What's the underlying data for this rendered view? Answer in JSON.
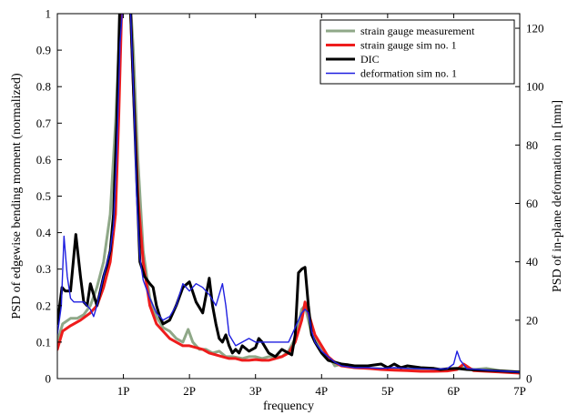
{
  "chart_data": {
    "type": "line",
    "title": "",
    "xlabel": "frequency",
    "ylabel": "PSD of edgewise bending moment (normalized)",
    "y2label": "PSD of in-plane deformation in [mm]",
    "xlim": [
      0,
      7
    ],
    "ylim": [
      0,
      1
    ],
    "y2lim": [
      0,
      125
    ],
    "xticks": [
      1,
      2,
      3,
      4,
      5,
      6,
      7
    ],
    "xtick_labels": [
      "1P",
      "2P",
      "3P",
      "4P",
      "5P",
      "6P",
      "7P"
    ],
    "yticks": [
      0,
      0.1,
      0.2,
      0.3,
      0.4,
      0.5,
      0.6,
      0.7,
      0.8,
      0.9,
      1
    ],
    "ytick_labels": [
      "0",
      "0.1",
      "0.2",
      "0.3",
      "0.4",
      "0.5",
      "0.6",
      "0.7",
      "0.8",
      "0.9",
      "1"
    ],
    "y2ticks": [
      0,
      20,
      40,
      60,
      80,
      100,
      120
    ],
    "y2tick_labels": [
      "0",
      "20",
      "40",
      "60",
      "80",
      "100",
      "120"
    ],
    "grid": false,
    "legend_position": "top-right",
    "series": [
      {
        "name": "strain gauge measurement",
        "color": "#8fa888",
        "width": 3,
        "axis": "left",
        "points": [
          [
            0.0,
            0.1
          ],
          [
            0.08,
            0.15
          ],
          [
            0.2,
            0.165
          ],
          [
            0.3,
            0.165
          ],
          [
            0.4,
            0.175
          ],
          [
            0.5,
            0.2
          ],
          [
            0.6,
            0.25
          ],
          [
            0.7,
            0.32
          ],
          [
            0.8,
            0.45
          ],
          [
            0.88,
            0.7
          ],
          [
            0.95,
            0.98
          ],
          [
            1.0,
            1.05
          ],
          [
            1.1,
            1.05
          ],
          [
            1.15,
            0.9
          ],
          [
            1.22,
            0.6
          ],
          [
            1.3,
            0.35
          ],
          [
            1.4,
            0.22
          ],
          [
            1.5,
            0.17
          ],
          [
            1.6,
            0.14
          ],
          [
            1.7,
            0.13
          ],
          [
            1.8,
            0.11
          ],
          [
            1.9,
            0.1
          ],
          [
            1.98,
            0.135
          ],
          [
            2.05,
            0.1
          ],
          [
            2.15,
            0.08
          ],
          [
            2.25,
            0.08
          ],
          [
            2.35,
            0.07
          ],
          [
            2.45,
            0.075
          ],
          [
            2.55,
            0.06
          ],
          [
            2.65,
            0.06
          ],
          [
            2.8,
            0.055
          ],
          [
            2.9,
            0.06
          ],
          [
            3.0,
            0.06
          ],
          [
            3.1,
            0.055
          ],
          [
            3.2,
            0.06
          ],
          [
            3.3,
            0.06
          ],
          [
            3.4,
            0.06
          ],
          [
            3.5,
            0.075
          ],
          [
            3.6,
            0.11
          ],
          [
            3.7,
            0.19
          ],
          [
            3.75,
            0.2
          ],
          [
            3.8,
            0.16
          ],
          [
            3.85,
            0.12
          ],
          [
            3.95,
            0.1
          ],
          [
            4.05,
            0.07
          ],
          [
            4.15,
            0.05
          ],
          [
            4.2,
            0.035
          ],
          [
            4.3,
            0.04
          ],
          [
            4.4,
            0.035
          ],
          [
            4.5,
            0.03
          ],
          [
            4.7,
            0.028
          ],
          [
            4.9,
            0.027
          ],
          [
            5.1,
            0.025
          ],
          [
            5.3,
            0.027
          ],
          [
            5.5,
            0.025
          ],
          [
            5.7,
            0.024
          ],
          [
            5.9,
            0.023
          ],
          [
            6.05,
            0.026
          ],
          [
            6.15,
            0.03
          ],
          [
            6.3,
            0.025
          ],
          [
            6.5,
            0.028
          ],
          [
            6.7,
            0.022
          ],
          [
            7.0,
            0.018
          ]
        ]
      },
      {
        "name": "strain gauge sim no. 1",
        "color": "#ee1c1c",
        "width": 3,
        "axis": "left",
        "points": [
          [
            0.0,
            0.08
          ],
          [
            0.08,
            0.13
          ],
          [
            0.2,
            0.145
          ],
          [
            0.35,
            0.16
          ],
          [
            0.5,
            0.18
          ],
          [
            0.6,
            0.2
          ],
          [
            0.7,
            0.25
          ],
          [
            0.8,
            0.32
          ],
          [
            0.88,
            0.45
          ],
          [
            0.93,
            0.72
          ],
          [
            0.98,
            1.05
          ],
          [
            1.1,
            1.05
          ],
          [
            1.15,
            0.8
          ],
          [
            1.22,
            0.5
          ],
          [
            1.3,
            0.32
          ],
          [
            1.4,
            0.2
          ],
          [
            1.5,
            0.15
          ],
          [
            1.6,
            0.13
          ],
          [
            1.7,
            0.11
          ],
          [
            1.8,
            0.1
          ],
          [
            1.9,
            0.09
          ],
          [
            2.0,
            0.09
          ],
          [
            2.1,
            0.085
          ],
          [
            2.2,
            0.08
          ],
          [
            2.3,
            0.07
          ],
          [
            2.4,
            0.065
          ],
          [
            2.5,
            0.06
          ],
          [
            2.6,
            0.055
          ],
          [
            2.7,
            0.055
          ],
          [
            2.8,
            0.05
          ],
          [
            2.9,
            0.05
          ],
          [
            3.0,
            0.052
          ],
          [
            3.1,
            0.05
          ],
          [
            3.2,
            0.05
          ],
          [
            3.3,
            0.055
          ],
          [
            3.4,
            0.06
          ],
          [
            3.5,
            0.07
          ],
          [
            3.6,
            0.1
          ],
          [
            3.7,
            0.16
          ],
          [
            3.75,
            0.21
          ],
          [
            3.8,
            0.18
          ],
          [
            3.9,
            0.12
          ],
          [
            4.0,
            0.09
          ],
          [
            4.1,
            0.06
          ],
          [
            4.2,
            0.045
          ],
          [
            4.3,
            0.035
          ],
          [
            4.5,
            0.03
          ],
          [
            4.7,
            0.028
          ],
          [
            4.9,
            0.025
          ],
          [
            5.1,
            0.023
          ],
          [
            5.3,
            0.022
          ],
          [
            5.5,
            0.02
          ],
          [
            5.7,
            0.02
          ],
          [
            5.9,
            0.021
          ],
          [
            6.05,
            0.025
          ],
          [
            6.15,
            0.04
          ],
          [
            6.3,
            0.022
          ],
          [
            6.5,
            0.02
          ],
          [
            6.7,
            0.018
          ],
          [
            7.0,
            0.015
          ]
        ]
      },
      {
        "name": "DIC",
        "color": "#000000",
        "width": 3,
        "axis": "left",
        "points": [
          [
            0.0,
            0.15
          ],
          [
            0.07,
            0.25
          ],
          [
            0.12,
            0.24
          ],
          [
            0.2,
            0.24
          ],
          [
            0.28,
            0.395
          ],
          [
            0.35,
            0.28
          ],
          [
            0.4,
            0.21
          ],
          [
            0.45,
            0.2
          ],
          [
            0.5,
            0.26
          ],
          [
            0.55,
            0.23
          ],
          [
            0.6,
            0.2
          ],
          [
            0.65,
            0.24
          ],
          [
            0.7,
            0.28
          ],
          [
            0.75,
            0.31
          ],
          [
            0.8,
            0.35
          ],
          [
            0.85,
            0.45
          ],
          [
            0.9,
            0.7
          ],
          [
            0.95,
            1.05
          ],
          [
            1.1,
            1.05
          ],
          [
            1.15,
            0.8
          ],
          [
            1.2,
            0.55
          ],
          [
            1.25,
            0.32
          ],
          [
            1.32,
            0.28
          ],
          [
            1.4,
            0.26
          ],
          [
            1.45,
            0.25
          ],
          [
            1.5,
            0.2
          ],
          [
            1.55,
            0.17
          ],
          [
            1.6,
            0.15
          ],
          [
            1.7,
            0.16
          ],
          [
            1.8,
            0.2
          ],
          [
            1.9,
            0.25
          ],
          [
            2.0,
            0.265
          ],
          [
            2.1,
            0.21
          ],
          [
            2.2,
            0.18
          ],
          [
            2.3,
            0.275
          ],
          [
            2.35,
            0.2
          ],
          [
            2.4,
            0.15
          ],
          [
            2.45,
            0.11
          ],
          [
            2.5,
            0.1
          ],
          [
            2.55,
            0.12
          ],
          [
            2.6,
            0.09
          ],
          [
            2.65,
            0.07
          ],
          [
            2.7,
            0.08
          ],
          [
            2.75,
            0.07
          ],
          [
            2.8,
            0.09
          ],
          [
            2.9,
            0.075
          ],
          [
            3.0,
            0.085
          ],
          [
            3.05,
            0.11
          ],
          [
            3.1,
            0.1
          ],
          [
            3.2,
            0.07
          ],
          [
            3.3,
            0.06
          ],
          [
            3.4,
            0.08
          ],
          [
            3.5,
            0.07
          ],
          [
            3.55,
            0.065
          ],
          [
            3.6,
            0.12
          ],
          [
            3.65,
            0.29
          ],
          [
            3.7,
            0.3
          ],
          [
            3.75,
            0.305
          ],
          [
            3.8,
            0.2
          ],
          [
            3.85,
            0.12
          ],
          [
            3.9,
            0.1
          ],
          [
            4.0,
            0.07
          ],
          [
            4.1,
            0.05
          ],
          [
            4.2,
            0.045
          ],
          [
            4.3,
            0.04
          ],
          [
            4.4,
            0.038
          ],
          [
            4.5,
            0.035
          ],
          [
            4.7,
            0.035
          ],
          [
            4.9,
            0.04
          ],
          [
            5.0,
            0.03
          ],
          [
            5.1,
            0.04
          ],
          [
            5.2,
            0.03
          ],
          [
            5.3,
            0.035
          ],
          [
            5.5,
            0.03
          ],
          [
            5.7,
            0.028
          ],
          [
            5.8,
            0.025
          ],
          [
            5.9,
            0.027
          ],
          [
            6.05,
            0.028
          ],
          [
            6.2,
            0.025
          ],
          [
            6.4,
            0.023
          ],
          [
            6.6,
            0.022
          ],
          [
            6.8,
            0.02
          ],
          [
            7.0,
            0.018
          ]
        ]
      },
      {
        "name": "deformation sim no. 1",
        "color": "#1f1fe0",
        "width": 1.4,
        "axis": "left",
        "points": [
          [
            0.0,
            0.12
          ],
          [
            0.06,
            0.2
          ],
          [
            0.1,
            0.39
          ],
          [
            0.15,
            0.28
          ],
          [
            0.2,
            0.22
          ],
          [
            0.25,
            0.21
          ],
          [
            0.3,
            0.21
          ],
          [
            0.4,
            0.21
          ],
          [
            0.45,
            0.2
          ],
          [
            0.5,
            0.19
          ],
          [
            0.55,
            0.17
          ],
          [
            0.6,
            0.2
          ],
          [
            0.7,
            0.28
          ],
          [
            0.8,
            0.35
          ],
          [
            0.85,
            0.42
          ],
          [
            0.9,
            0.62
          ],
          [
            0.95,
            0.92
          ],
          [
            1.0,
            1.05
          ],
          [
            1.1,
            1.05
          ],
          [
            1.15,
            0.8
          ],
          [
            1.2,
            0.5
          ],
          [
            1.25,
            0.33
          ],
          [
            1.3,
            0.27
          ],
          [
            1.4,
            0.22
          ],
          [
            1.5,
            0.18
          ],
          [
            1.6,
            0.16
          ],
          [
            1.7,
            0.17
          ],
          [
            1.8,
            0.2
          ],
          [
            1.9,
            0.26
          ],
          [
            2.0,
            0.24
          ],
          [
            2.1,
            0.26
          ],
          [
            2.2,
            0.25
          ],
          [
            2.3,
            0.23
          ],
          [
            2.4,
            0.2
          ],
          [
            2.5,
            0.26
          ],
          [
            2.55,
            0.2
          ],
          [
            2.6,
            0.12
          ],
          [
            2.7,
            0.09
          ],
          [
            2.8,
            0.1
          ],
          [
            2.9,
            0.11
          ],
          [
            3.0,
            0.1
          ],
          [
            3.1,
            0.1
          ],
          [
            3.2,
            0.1
          ],
          [
            3.3,
            0.1
          ],
          [
            3.4,
            0.1
          ],
          [
            3.5,
            0.1
          ],
          [
            3.6,
            0.14
          ],
          [
            3.7,
            0.18
          ],
          [
            3.75,
            0.19
          ],
          [
            3.8,
            0.18
          ],
          [
            3.85,
            0.13
          ],
          [
            3.9,
            0.1
          ],
          [
            4.0,
            0.075
          ],
          [
            4.1,
            0.06
          ],
          [
            4.2,
            0.045
          ],
          [
            4.3,
            0.035
          ],
          [
            4.5,
            0.03
          ],
          [
            4.7,
            0.03
          ],
          [
            4.9,
            0.028
          ],
          [
            5.1,
            0.03
          ],
          [
            5.3,
            0.028
          ],
          [
            5.5,
            0.027
          ],
          [
            5.7,
            0.026
          ],
          [
            5.9,
            0.027
          ],
          [
            6.0,
            0.04
          ],
          [
            6.05,
            0.075
          ],
          [
            6.1,
            0.05
          ],
          [
            6.2,
            0.027
          ],
          [
            6.4,
            0.025
          ],
          [
            6.6,
            0.022
          ],
          [
            6.8,
            0.02
          ],
          [
            7.0,
            0.018
          ]
        ]
      }
    ]
  }
}
